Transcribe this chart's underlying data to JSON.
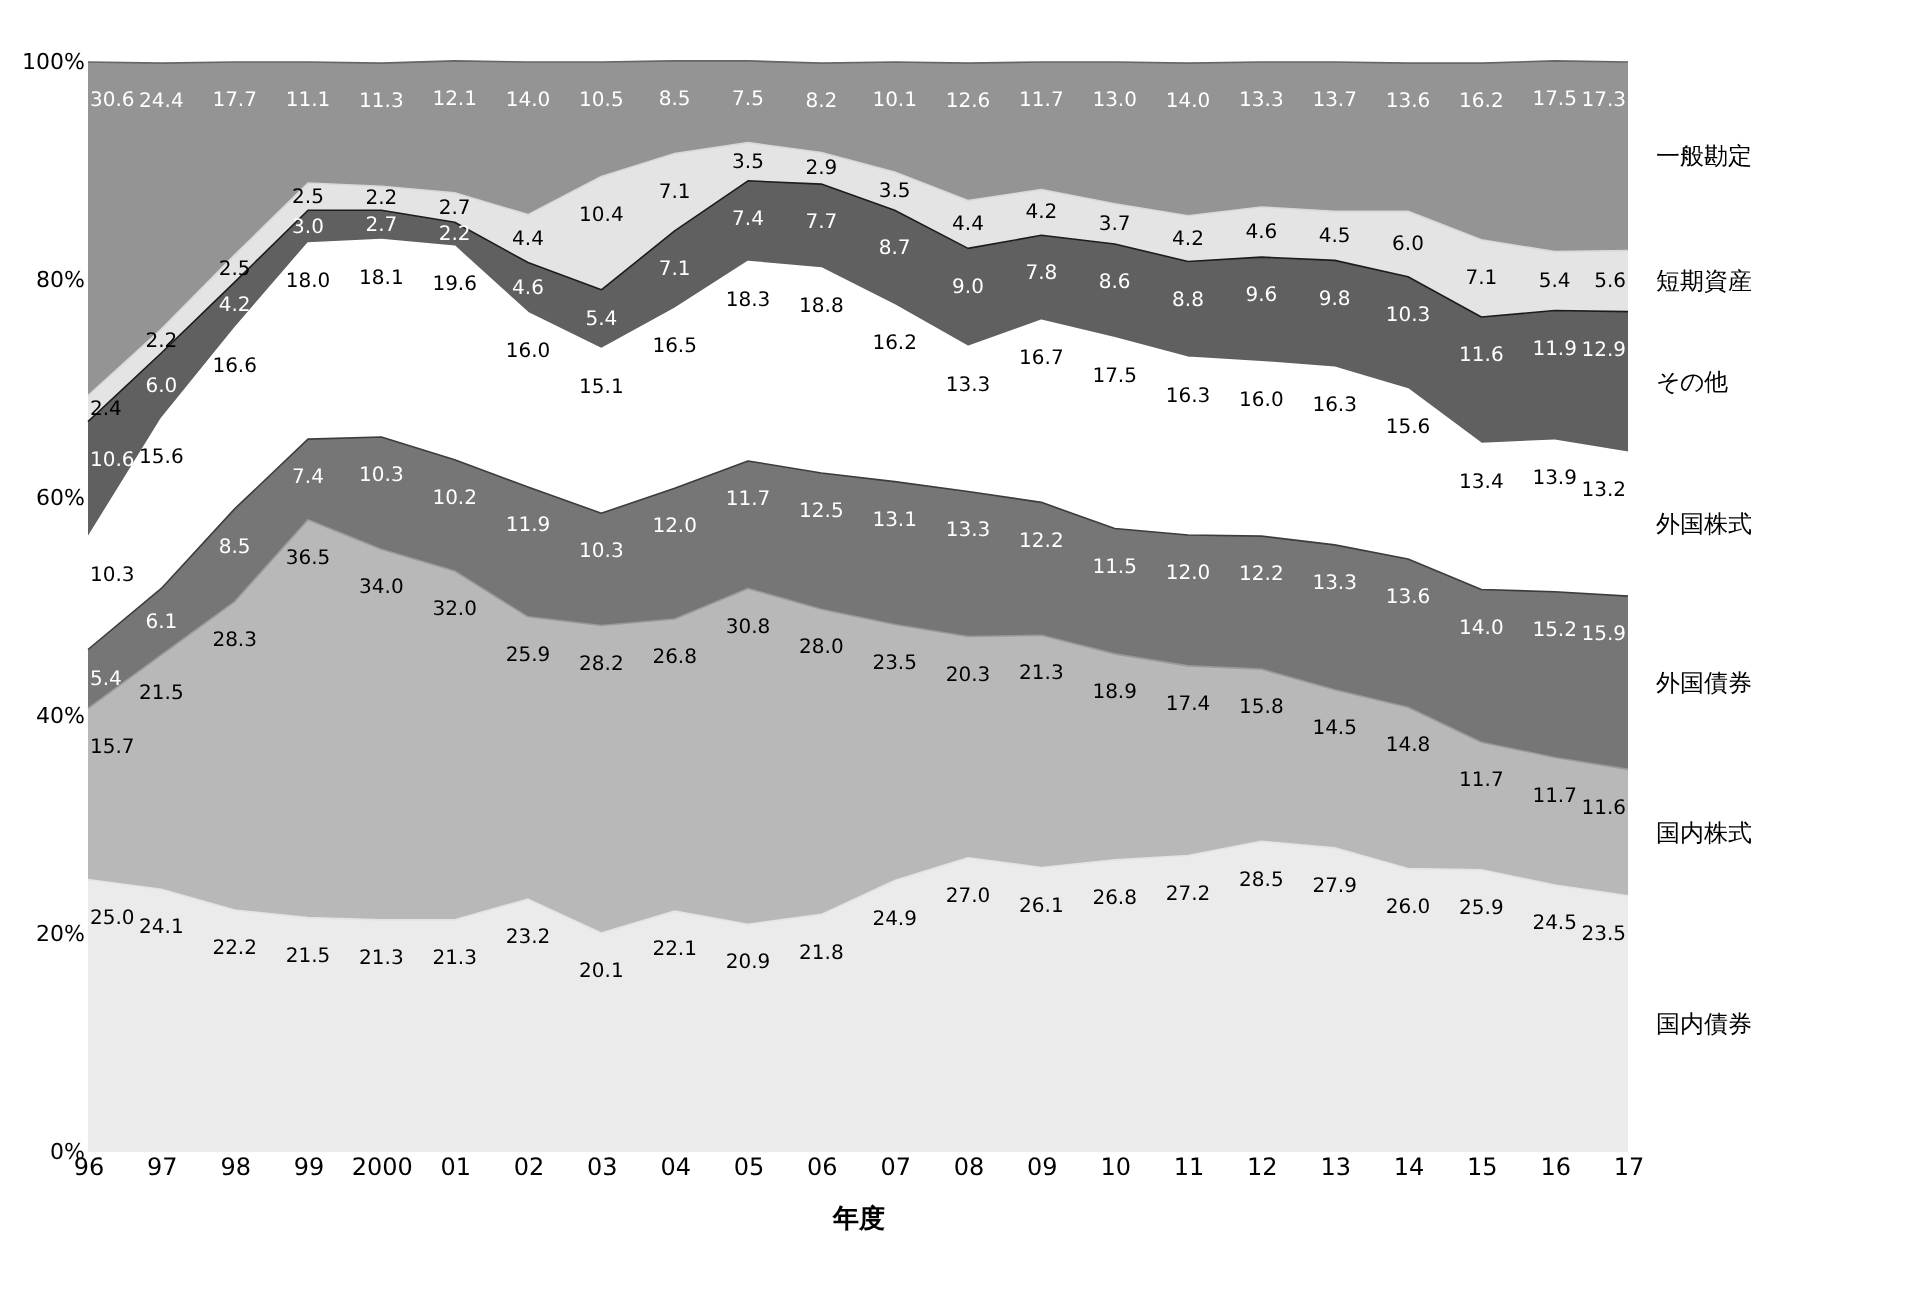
{
  "chart_data": {
    "type": "area",
    "stacked": true,
    "xlabel": "年度",
    "categories": [
      "96",
      "97",
      "98",
      "99",
      "2000",
      "01",
      "02",
      "03",
      "04",
      "05",
      "06",
      "07",
      "08",
      "09",
      "10",
      "11",
      "12",
      "13",
      "14",
      "15",
      "16",
      "17"
    ],
    "ylim": [
      0,
      100
    ],
    "yticks": [
      {
        "value": 0,
        "label": "0%"
      },
      {
        "value": 20,
        "label": "20%"
      },
      {
        "value": 40,
        "label": "40%"
      },
      {
        "value": 60,
        "label": "60%"
      },
      {
        "value": 80,
        "label": "80%"
      },
      {
        "value": 100,
        "label": "100%"
      }
    ],
    "series": [
      {
        "name": "国内債券",
        "color": "#e3e3e3",
        "values": [
          25.0,
          24.1,
          22.2,
          21.5,
          21.3,
          21.3,
          23.2,
          20.1,
          22.1,
          20.9,
          21.8,
          24.9,
          27.0,
          26.1,
          26.8,
          27.2,
          28.5,
          27.9,
          26.0,
          25.9,
          24.5,
          23.5
        ],
        "value_labels": [
          "25.0",
          "24.1",
          "22.2",
          "21.5",
          "21.3",
          "21.3",
          "23.2",
          "20.1",
          "22.1",
          "20.9",
          "21.8",
          "24.9",
          "27.0",
          "26.1",
          "26.8",
          "27.2",
          "28.5",
          "27.9",
          "26.0",
          "25.9",
          "24.5",
          "23.5"
        ]
      },
      {
        "name": "国内株式",
        "color": "#9a9a9a",
        "values": [
          15.7,
          21.5,
          28.3,
          36.5,
          34.0,
          32.0,
          25.9,
          28.2,
          26.8,
          30.8,
          28.0,
          23.5,
          20.3,
          21.3,
          18.9,
          17.4,
          15.8,
          14.5,
          14.8,
          11.7,
          11.7,
          11.6
        ],
        "value_labels": [
          "15.7",
          "21.5",
          "28.3",
          "36.5",
          "34.0",
          "32.0",
          "25.9",
          "28.2",
          "26.8",
          "30.8",
          "28.0",
          "23.5",
          "20.3",
          "21.3",
          "18.9",
          "17.4",
          "15.8",
          "14.5",
          "14.8",
          "11.7",
          "11.7",
          "11.6"
        ]
      },
      {
        "name": "外国債券",
        "color": "#3c3c3c",
        "values": [
          5.4,
          6.1,
          8.5,
          7.4,
          10.3,
          10.2,
          11.9,
          10.3,
          12.0,
          11.7,
          12.5,
          13.1,
          13.3,
          12.2,
          11.5,
          12.0,
          12.2,
          13.3,
          13.6,
          14.0,
          15.2,
          15.9
        ],
        "value_labels": [
          "5.4",
          "6.1",
          "8.5",
          "7.4",
          "10.3",
          "10.2",
          "11.9",
          "10.3",
          "12.0",
          "11.7",
          "12.5",
          "13.1",
          "13.3",
          "12.2",
          "11.5",
          "12.0",
          "12.2",
          "13.3",
          "13.6",
          "14.0",
          "15.2",
          "15.9"
        ]
      },
      {
        "name": "外国株式",
        "color": "#ffffff",
        "values": [
          10.3,
          15.6,
          16.6,
          18.0,
          18.1,
          19.6,
          16.0,
          15.1,
          16.5,
          18.3,
          18.8,
          16.2,
          13.3,
          16.7,
          17.5,
          16.3,
          16.0,
          16.3,
          15.6,
          13.4,
          13.9,
          13.2
        ],
        "value_labels": [
          "10.3",
          "15.6",
          "16.6",
          "18.0",
          "18.1",
          "19.6",
          "16.0",
          "15.1",
          "16.5",
          "18.3",
          "18.8",
          "16.2",
          "13.3",
          "16.7",
          "17.5",
          "16.3",
          "16.0",
          "16.3",
          "15.6",
          "13.4",
          "13.9",
          "13.2"
        ]
      },
      {
        "name": "その他",
        "color": "#1c1c1c",
        "values": [
          10.6,
          6.0,
          4.2,
          3.0,
          2.7,
          2.2,
          4.6,
          5.4,
          7.1,
          7.4,
          7.7,
          8.7,
          9.0,
          7.8,
          8.6,
          8.8,
          9.6,
          9.8,
          10.3,
          11.6,
          11.9,
          12.9
        ],
        "value_labels": [
          "10.6",
          "6.0",
          "4.2",
          "3.0",
          "2.7",
          "2.2",
          "4.6",
          "5.4",
          "7.1",
          "7.4",
          "7.7",
          "8.7",
          "9.0",
          "7.8",
          "8.6",
          "8.8",
          "9.6",
          "9.8",
          "10.3",
          "11.6",
          "11.9",
          "12.9"
        ]
      },
      {
        "name": "短期資産",
        "color": "#d8d8d8",
        "values": [
          2.4,
          2.2,
          2.5,
          2.5,
          2.2,
          2.7,
          4.4,
          10.4,
          7.1,
          3.5,
          2.9,
          3.5,
          4.4,
          4.2,
          3.7,
          4.2,
          4.6,
          4.5,
          6.0,
          7.1,
          5.4,
          5.6
        ],
        "value_labels": [
          "2.4",
          "2.2",
          "2.5",
          "2.5",
          "2.2",
          "2.7",
          "4.4",
          "10.4",
          "7.1",
          "3.5",
          "2.9",
          "3.5",
          "4.4",
          "4.2",
          "3.7",
          "4.2",
          "4.6",
          "4.5",
          "6.0",
          "7.1",
          "5.4",
          "5.6"
        ]
      },
      {
        "name": "一般勘定",
        "color": "#666666",
        "values": [
          30.6,
          24.4,
          17.7,
          11.1,
          11.3,
          12.1,
          14.0,
          10.5,
          8.5,
          7.5,
          8.2,
          10.1,
          12.6,
          11.7,
          13.0,
          14.0,
          13.3,
          13.7,
          13.6,
          16.2,
          17.5,
          17.3
        ],
        "value_labels": [
          "30.6",
          "24.4",
          "17.7",
          "11.1",
          "11.3",
          "12.1",
          "14.0",
          "10.5",
          "8.5",
          "7.5",
          "8.2",
          "10.1",
          "12.6",
          "11.7",
          "13.0",
          "14.0",
          "13.3",
          "13.7",
          "13.6",
          "16.2",
          "17.5",
          "17.3"
        ]
      }
    ]
  }
}
